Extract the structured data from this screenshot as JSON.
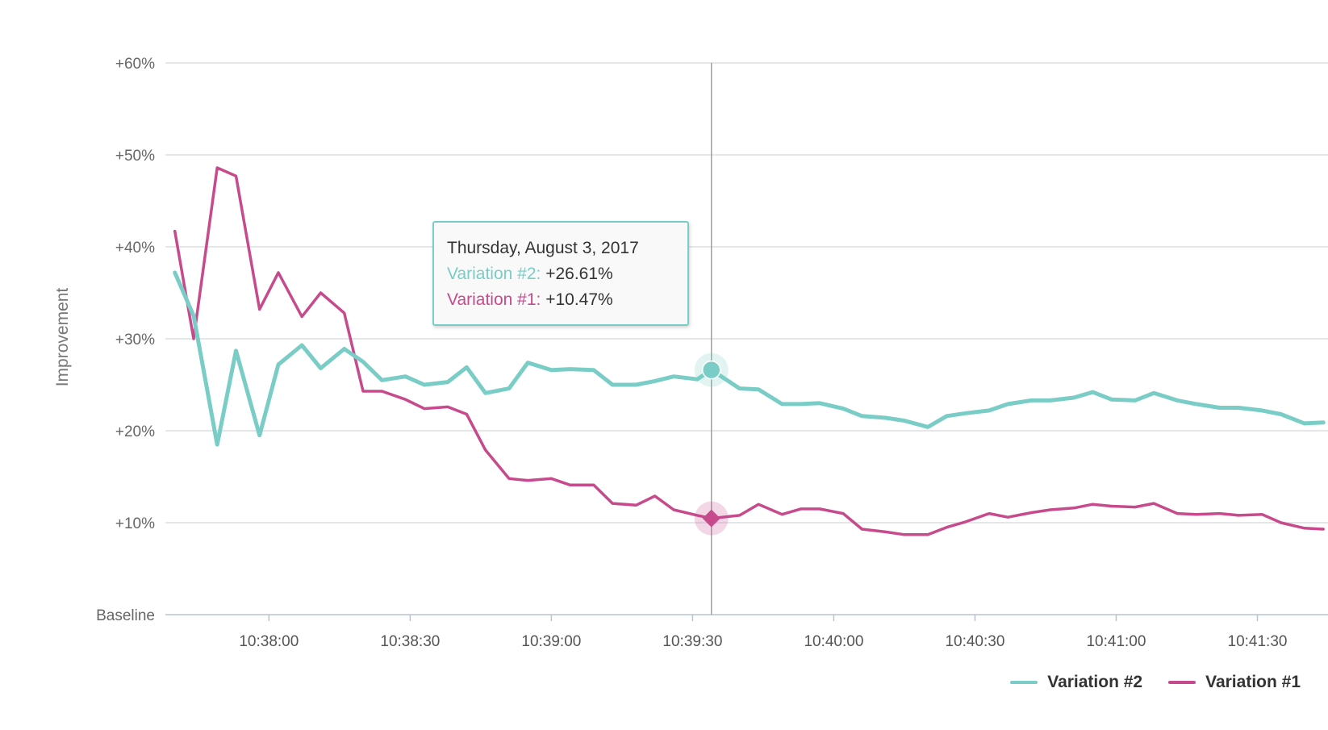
{
  "chart_data": {
    "type": "line",
    "ylabel": "Improvement",
    "y_ticks": [
      "Baseline",
      "+10%",
      "+20%",
      "+30%",
      "+40%",
      "+50%",
      "+60%"
    ],
    "y_tick_values": [
      0,
      10,
      20,
      30,
      40,
      50,
      60
    ],
    "ylim": [
      0,
      60
    ],
    "x_ticks": [
      "10:38:00",
      "10:38:30",
      "10:39:00",
      "10:39:30",
      "10:40:00",
      "10:40:30",
      "10:41:00",
      "10:41:30"
    ],
    "x_tick_values": [
      "10:38:00",
      "10:38:30",
      "10:39:00",
      "10:39:30",
      "10:40:00",
      "10:40:30",
      "10:41:00",
      "10:41:30"
    ],
    "xlim": [
      "10:37:38",
      "10:41:45"
    ],
    "grid": true,
    "legend_position": "bottom-right",
    "x": [
      "10:37:40",
      "10:37:44",
      "10:37:49",
      "10:37:53",
      "10:37:58",
      "10:38:02",
      "10:38:07",
      "10:38:11",
      "10:38:16",
      "10:38:20",
      "10:38:24",
      "10:38:29",
      "10:38:33",
      "10:38:38",
      "10:38:42",
      "10:38:46",
      "10:38:51",
      "10:38:55",
      "10:39:00",
      "10:39:04",
      "10:39:09",
      "10:39:13",
      "10:39:18",
      "10:39:22",
      "10:39:26",
      "10:39:31",
      "10:39:35",
      "10:39:40",
      "10:39:44",
      "10:39:49",
      "10:39:53",
      "10:39:57",
      "10:40:02",
      "10:40:06",
      "10:40:11",
      "10:40:15",
      "10:40:20",
      "10:40:24",
      "10:40:28",
      "10:40:33",
      "10:40:37",
      "10:40:42",
      "10:40:46",
      "10:40:51",
      "10:40:55",
      "10:40:59",
      "10:41:04",
      "10:41:08",
      "10:41:13",
      "10:41:17",
      "10:41:22",
      "10:41:26",
      "10:41:31",
      "10:41:35",
      "10:41:40",
      "10:41:44"
    ],
    "series": [
      {
        "name": "Variation #2",
        "color": "#79cdc6",
        "values": [
          37.2,
          32.5,
          18.5,
          28.7,
          19.5,
          27.2,
          29.3,
          26.8,
          28.9,
          27.5,
          25.5,
          25.9,
          25.0,
          25.3,
          26.9,
          24.1,
          24.6,
          27.4,
          26.6,
          26.7,
          26.6,
          25.0,
          25.0,
          25.4,
          25.9,
          25.6,
          26.61,
          24.6,
          24.5,
          22.9,
          22.9,
          23.0,
          22.4,
          21.6,
          21.4,
          21.1,
          20.4,
          21.6,
          21.9,
          22.2,
          22.9,
          23.3,
          23.3,
          23.6,
          24.2,
          23.4,
          23.3,
          24.1,
          23.3,
          22.9,
          22.5,
          22.5,
          22.2,
          21.8,
          20.8,
          20.9
        ]
      },
      {
        "name": "Variation #1",
        "color": "#c74a8d",
        "values": [
          41.7,
          30.0,
          48.6,
          47.7,
          33.2,
          37.2,
          32.4,
          35.0,
          32.8,
          24.3,
          24.3,
          23.4,
          22.4,
          22.6,
          21.8,
          17.9,
          14.8,
          14.6,
          14.8,
          14.1,
          14.1,
          12.1,
          11.9,
          12.9,
          11.4,
          10.8,
          10.47,
          10.8,
          12.0,
          10.9,
          11.5,
          11.5,
          11.0,
          9.3,
          9.0,
          8.7,
          8.7,
          9.5,
          10.1,
          11.0,
          10.6,
          11.1,
          11.4,
          11.6,
          12.0,
          11.8,
          11.7,
          12.1,
          11.0,
          10.9,
          11.0,
          10.8,
          10.9,
          10.0,
          9.4,
          9.3
        ]
      }
    ],
    "hover_index": 26,
    "hover_x": "10:39:34",
    "annotations": {
      "tooltip": {
        "date": "Thursday, August 3, 2017",
        "rows": [
          {
            "label": "Variation #2:",
            "value": "+26.61%",
            "color": "#79cdc6"
          },
          {
            "label": "Variation #1:",
            "value": "+10.47%",
            "color": "#c74a8d"
          }
        ]
      }
    }
  },
  "legend": {
    "items": [
      {
        "label": "Variation #2",
        "color": "#79cdc6"
      },
      {
        "label": "Variation #1",
        "color": "#c74a8d"
      }
    ]
  }
}
